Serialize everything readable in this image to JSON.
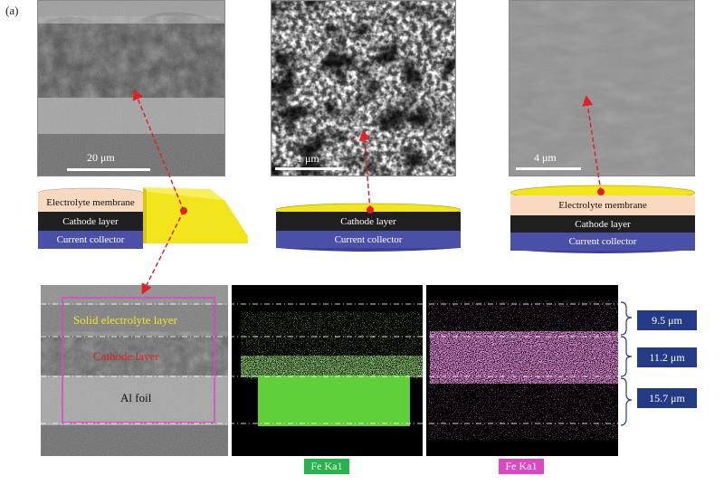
{
  "figure": {
    "panel_label": "(a)",
    "colors": {
      "electrolyte": "#f3e51c",
      "membrane": "#f9d9bf",
      "cathode": "#1f1f1f",
      "collector": "#4a4fa8",
      "arrow": "#e0212a",
      "fe_map": "#5fcf3a",
      "fe_map_badge": "#27b34b",
      "s_map": "#d84ac4",
      "thickness_box": "#233a86"
    }
  },
  "top_row": {
    "sem1": {
      "scale": "20 μm"
    },
    "sem2": {
      "scale": "1 μm"
    },
    "sem3": {
      "scale": "4 μm"
    },
    "stack1": {
      "membrane": "Electrolyte membrane",
      "cathode": "Cathode layer",
      "collector": "Current collector"
    },
    "stack2": {
      "cathode": "Cathode layer",
      "collector": "Current collector"
    },
    "stack3": {
      "membrane": "Electrolyte membrane",
      "cathode": "Cathode layer",
      "collector": "Current collector"
    }
  },
  "bottom_row": {
    "cross_section": {
      "solid_electrolyte": "Solid electrolyte layer",
      "cathode": "Cathode layer",
      "foil": "Al foil"
    },
    "thickness": [
      "9.5 μm",
      "11.2 μm",
      "15.7 μm"
    ],
    "map1_label": "Fe Ka1",
    "map2_label": "Fe Ka1"
  }
}
